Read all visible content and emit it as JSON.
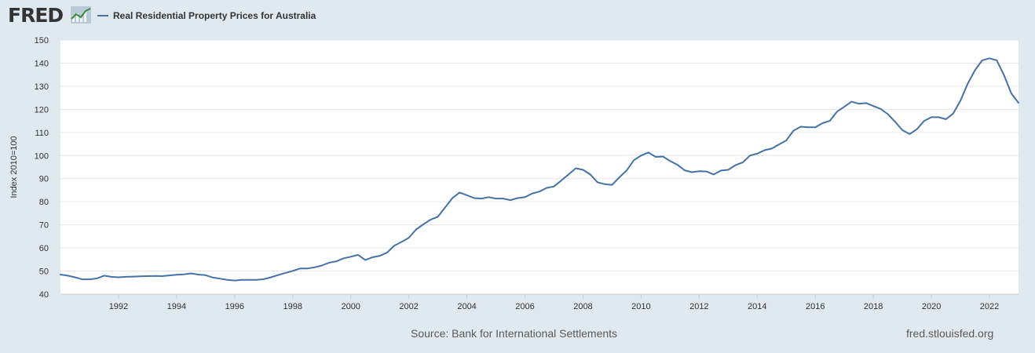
{
  "header": {
    "logo_text": "FRED",
    "logo_icon": "line-chart-icon"
  },
  "colors": {
    "background": "#e1e9f0",
    "plot_background": "#ffffff",
    "series": "#4572a7",
    "grid": "#e6e6e6",
    "text": "#333333"
  },
  "footer": {
    "source": "Source: Bank for International Settlements",
    "credit": "fred.stlouisfed.org"
  },
  "chart_data": {
    "type": "line",
    "title": "",
    "xlabel": "",
    "ylabel": "Index 2010=100",
    "ylim": [
      40,
      150
    ],
    "yticks": [
      40,
      50,
      60,
      70,
      80,
      90,
      100,
      110,
      120,
      130,
      140,
      150
    ],
    "xlim": [
      1990.0,
      2023.0
    ],
    "xticks": [
      1992,
      1994,
      1996,
      1998,
      2000,
      2002,
      2004,
      2006,
      2008,
      2010,
      2012,
      2014,
      2016,
      2018,
      2020,
      2022
    ],
    "grid": true,
    "legend": "top-left",
    "series": [
      {
        "name": "Real Residential Property Prices for Australia",
        "x": [
          1990.0,
          1990.25,
          1990.5,
          1990.75,
          1991.0,
          1991.25,
          1991.5,
          1991.75,
          1992.0,
          1992.25,
          1992.5,
          1992.75,
          1993.0,
          1993.25,
          1993.5,
          1993.75,
          1994.0,
          1994.25,
          1994.5,
          1994.75,
          1995.0,
          1995.25,
          1995.5,
          1995.75,
          1996.0,
          1996.25,
          1996.5,
          1996.75,
          1997.0,
          1997.25,
          1997.5,
          1997.75,
          1998.0,
          1998.25,
          1998.5,
          1998.75,
          1999.0,
          1999.25,
          1999.5,
          1999.75,
          2000.0,
          2000.25,
          2000.5,
          2000.75,
          2001.0,
          2001.25,
          2001.5,
          2001.75,
          2002.0,
          2002.25,
          2002.5,
          2002.75,
          2003.0,
          2003.25,
          2003.5,
          2003.75,
          2004.0,
          2004.25,
          2004.5,
          2004.75,
          2005.0,
          2005.25,
          2005.5,
          2005.75,
          2006.0,
          2006.25,
          2006.5,
          2006.75,
          2007.0,
          2007.25,
          2007.5,
          2007.75,
          2008.0,
          2008.25,
          2008.5,
          2008.75,
          2009.0,
          2009.25,
          2009.5,
          2009.75,
          2010.0,
          2010.25,
          2010.5,
          2010.75,
          2011.0,
          2011.25,
          2011.5,
          2011.75,
          2012.0,
          2012.25,
          2012.5,
          2012.75,
          2013.0,
          2013.25,
          2013.5,
          2013.75,
          2014.0,
          2014.25,
          2014.5,
          2014.75,
          2015.0,
          2015.25,
          2015.5,
          2015.75,
          2016.0,
          2016.25,
          2016.5,
          2016.75,
          2017.0,
          2017.25,
          2017.5,
          2017.75,
          2018.0,
          2018.25,
          2018.5,
          2018.75,
          2019.0,
          2019.25,
          2019.5,
          2019.75,
          2020.0,
          2020.25,
          2020.5,
          2020.75,
          2021.0,
          2021.25,
          2021.5,
          2021.75,
          2022.0,
          2022.25,
          2022.5,
          2022.75,
          2023.0
        ],
        "values": [
          48.5,
          48.0,
          47.3,
          46.4,
          46.4,
          46.8,
          48.0,
          47.5,
          47.3,
          47.5,
          47.6,
          47.7,
          47.8,
          47.9,
          47.8,
          48.1,
          48.4,
          48.6,
          49.0,
          48.5,
          48.2,
          47.2,
          46.7,
          46.2,
          45.9,
          46.2,
          46.2,
          46.2,
          46.5,
          47.3,
          48.3,
          49.2,
          50.1,
          51.1,
          51.1,
          51.6,
          52.4,
          53.6,
          54.2,
          55.5,
          56.2,
          57.0,
          54.8,
          56.0,
          56.6,
          58.0,
          61.0,
          62.6,
          64.4,
          68.0,
          70.2,
          72.3,
          73.5,
          77.5,
          81.6,
          84.0,
          82.8,
          81.6,
          81.4,
          82.0,
          81.4,
          81.4,
          80.7,
          81.6,
          82.0,
          83.6,
          84.4,
          86.0,
          86.6,
          89.2,
          91.8,
          94.5,
          93.8,
          91.8,
          88.4,
          87.6,
          87.3,
          90.6,
          93.5,
          98.0,
          100.0,
          101.3,
          99.4,
          99.6,
          97.6,
          96.0,
          93.6,
          92.8,
          93.2,
          93.1,
          91.8,
          93.5,
          93.8,
          95.8,
          97.0,
          100.0,
          100.8,
          102.3,
          103.0,
          104.8,
          106.5,
          110.8,
          112.5,
          112.2,
          112.2,
          114.0,
          115.0,
          119.0,
          121.1,
          123.3,
          122.4,
          122.7,
          121.4,
          120.2,
          117.9,
          114.6,
          111.0,
          109.3,
          111.4,
          115.0,
          116.6,
          116.6,
          115.7,
          118.2,
          123.8,
          131.1,
          136.9,
          141.2,
          142.1,
          141.2,
          134.8,
          126.9,
          122.8
        ]
      }
    ]
  }
}
